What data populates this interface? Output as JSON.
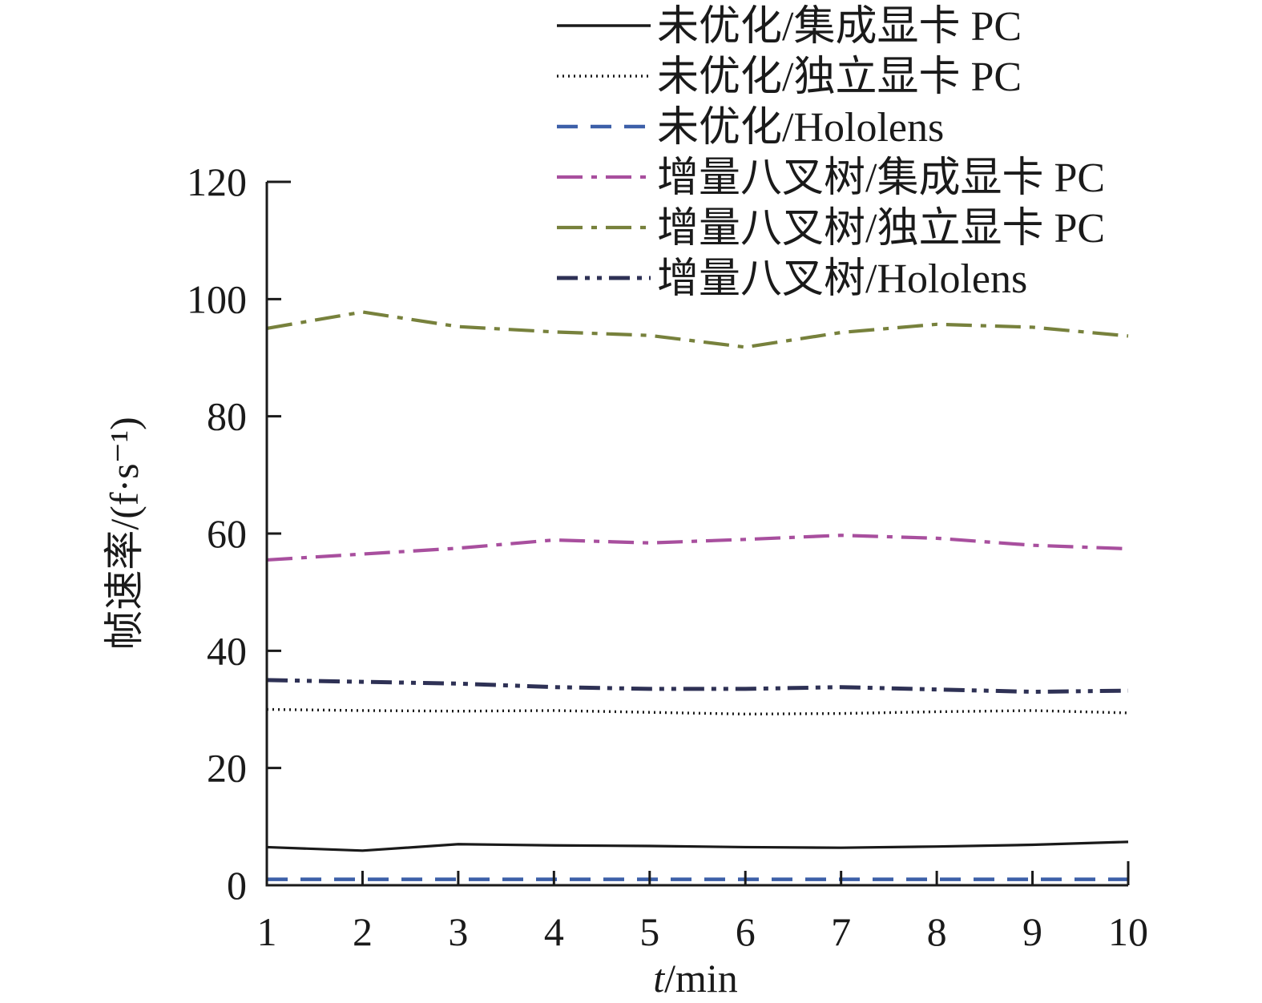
{
  "figure": {
    "background": "#ffffff",
    "axis_color": "#1a1a1a"
  },
  "chart_data": {
    "type": "line",
    "title": "",
    "xlabel_variable": "t",
    "xlabel_unit": "/min",
    "ylabel": "帧速率/(f·s⁻¹)",
    "xlim": [
      1,
      10
    ],
    "ylim": [
      0,
      120
    ],
    "x_ticks": [
      1,
      2,
      3,
      4,
      5,
      6,
      7,
      8,
      9,
      10
    ],
    "y_ticks": [
      0,
      20,
      40,
      60,
      80,
      100,
      120
    ],
    "grid": false,
    "legend_position": "top-inside-no-border",
    "x": [
      1,
      2,
      3,
      4,
      5,
      6,
      7,
      8,
      9,
      10
    ],
    "series": [
      {
        "name": "未优化/集成显卡 PC",
        "color": "#1a1a1a",
        "style": "solid",
        "width": 3.2,
        "values": [
          6.5,
          5.9,
          7.0,
          6.8,
          6.7,
          6.5,
          6.4,
          6.6,
          6.9,
          7.4
        ]
      },
      {
        "name": "未优化/独立显卡 PC",
        "color": "#1a1a1a",
        "style": "dotted",
        "width": 3.4,
        "values": [
          30.0,
          29.8,
          29.7,
          29.8,
          29.5,
          29.2,
          29.3,
          29.6,
          29.8,
          29.4
        ]
      },
      {
        "name": "未优化/Hololens",
        "color": "#3c5fa8",
        "style": "dashed",
        "width": 4.5,
        "values": [
          1.0,
          1.0,
          1.0,
          1.0,
          1.0,
          1.0,
          1.0,
          1.0,
          1.0,
          1.0
        ]
      },
      {
        "name": "增量八叉树/集成显卡 PC",
        "color": "#a84f9e",
        "style": "dashdot",
        "width": 4.2,
        "values": [
          55.5,
          56.5,
          57.5,
          58.9,
          58.4,
          59.0,
          59.7,
          59.2,
          58.0,
          57.4
        ]
      },
      {
        "name": "增量八叉树/独立显卡 PC",
        "color": "#77813c",
        "style": "dashdot",
        "width": 4.2,
        "values": [
          95.0,
          97.8,
          95.3,
          94.4,
          93.8,
          91.8,
          94.3,
          95.7,
          95.2,
          93.7
        ]
      },
      {
        "name": "增量八叉树/Hololens",
        "color": "#2e3155",
        "style": "dashdotdot",
        "width": 5.0,
        "values": [
          35.0,
          34.7,
          34.4,
          33.8,
          33.5,
          33.5,
          33.8,
          33.4,
          33.0,
          33.2
        ]
      }
    ]
  }
}
